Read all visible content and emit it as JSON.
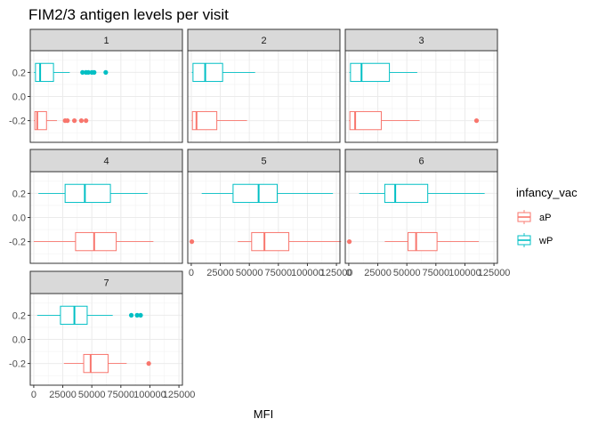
{
  "chart_data": {
    "type": "boxplot",
    "title": "FIM2/3 antigen levels per visit",
    "xlabel": "MFI",
    "ylabel": "",
    "xlim": [
      -3000,
      128000
    ],
    "x_ticks": [
      0,
      25000,
      50000,
      75000,
      100000,
      125000
    ],
    "x_tick_labels": [
      "0",
      "25000",
      "50000",
      "75000",
      "100000",
      "125000"
    ],
    "ylim": [
      -0.38,
      0.38
    ],
    "y_ticks": [
      0.2,
      0.0,
      -0.2
    ],
    "y_tick_labels": [
      "0.2",
      "0.0",
      "-0.2"
    ],
    "grid": true,
    "legend": {
      "title": "infancy_vac",
      "position": "right",
      "entries": [
        {
          "label": "aP",
          "color": "#F8766D"
        },
        {
          "label": "wP",
          "color": "#00BFC4"
        }
      ]
    },
    "series_colors": {
      "aP": "#F8766D",
      "wP": "#00BFC4"
    },
    "panels": [
      {
        "label": "1",
        "wP": {
          "whisker_low": 200,
          "q1": 1500,
          "median": 5500,
          "q3": 17000,
          "whisker_high": 31000,
          "outliers": [
            42000,
            45000,
            47000,
            50000,
            52000,
            62000
          ]
        },
        "aP": {
          "whisker_low": 100,
          "q1": 1000,
          "median": 3000,
          "q3": 11000,
          "whisker_high": 20000,
          "outliers": [
            27000,
            29000,
            35000,
            41000,
            45000
          ]
        }
      },
      {
        "label": "2",
        "wP": {
          "whisker_low": 500,
          "q1": 1500,
          "median": 12000,
          "q3": 27000,
          "whisker_high": 55000,
          "outliers": []
        },
        "aP": {
          "whisker_low": 200,
          "q1": 1000,
          "median": 4500,
          "q3": 22000,
          "whisker_high": 48000,
          "outliers": []
        }
      },
      {
        "label": "3",
        "wP": {
          "whisker_low": 500,
          "q1": 1500,
          "median": 11000,
          "q3": 35000,
          "whisker_high": 59000,
          "outliers": []
        },
        "aP": {
          "whisker_low": 200,
          "q1": 1000,
          "median": 5500,
          "q3": 28000,
          "whisker_high": 61000,
          "outliers": [
            110000
          ]
        }
      },
      {
        "label": "4",
        "wP": {
          "whisker_low": 4000,
          "q1": 27000,
          "median": 44000,
          "q3": 66000,
          "whisker_high": 98000,
          "outliers": []
        },
        "aP": {
          "whisker_low": 0,
          "q1": 36000,
          "median": 52000,
          "q3": 71000,
          "whisker_high": 103000,
          "outliers": []
        }
      },
      {
        "label": "5",
        "wP": {
          "whisker_low": 9000,
          "q1": 36000,
          "median": 58000,
          "q3": 74000,
          "whisker_high": 122000,
          "outliers": []
        },
        "aP": {
          "whisker_low": 40000,
          "q1": 52000,
          "median": 63000,
          "q3": 84000,
          "whisker_high": 129000,
          "outliers": [
            500
          ]
        }
      },
      {
        "label": "6",
        "wP": {
          "whisker_low": 9000,
          "q1": 31000,
          "median": 40000,
          "q3": 68000,
          "whisker_high": 117000,
          "outliers": []
        },
        "aP": {
          "whisker_low": 31000,
          "q1": 51000,
          "median": 58000,
          "q3": 76000,
          "whisker_high": 112000,
          "outliers": [
            500
          ]
        }
      },
      {
        "label": "7",
        "wP": {
          "whisker_low": 3000,
          "q1": 23000,
          "median": 35000,
          "q3": 46000,
          "whisker_high": 68000,
          "outliers": [
            84000,
            89000,
            92000
          ]
        },
        "aP": {
          "whisker_low": 26000,
          "q1": 43000,
          "median": 49000,
          "q3": 64000,
          "whisker_high": 80000,
          "outliers": [
            99000
          ]
        }
      }
    ]
  }
}
